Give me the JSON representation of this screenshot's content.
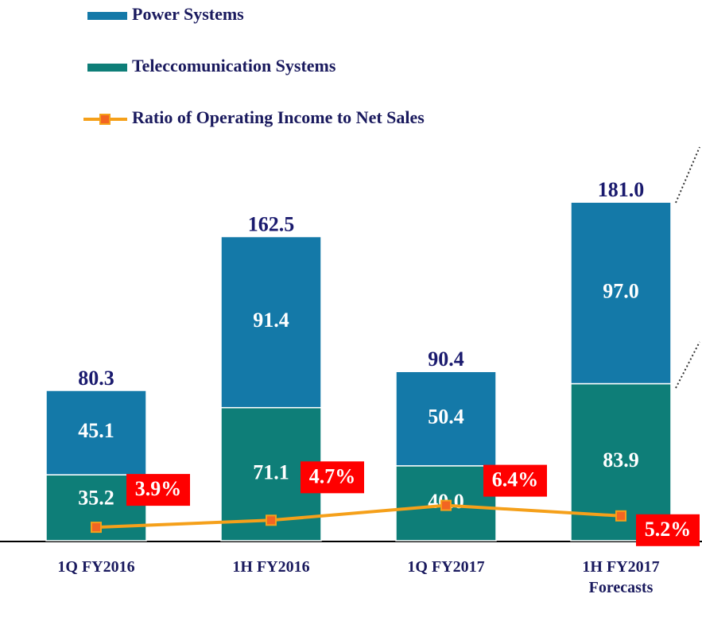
{
  "chart_data": {
    "type": "bar",
    "stacked": true,
    "categories": [
      "1Q FY2016",
      "1H FY2016",
      "1Q FY2017",
      "1H FY2017 Forecasts"
    ],
    "series": [
      {
        "name": "Teleccomunication Systems",
        "color": "#0e7e78",
        "values": [
          35.2,
          71.1,
          40.0,
          83.9
        ],
        "value_labels": [
          "35.2",
          "71.1",
          "40.0",
          "83.9"
        ]
      },
      {
        "name": "Power Systems",
        "color": "#1479a8",
        "values": [
          45.1,
          91.4,
          50.4,
          97.0
        ],
        "value_labels": [
          "45.1",
          "91.4",
          "50.4",
          "97.0"
        ]
      },
      {
        "name": "Ratio of Operating Income to Net Sales",
        "type": "line",
        "axis": "y2",
        "color": "#f5a01a",
        "marker_color": "#f26522",
        "values": [
          3.9,
          4.7,
          6.4,
          5.2
        ],
        "value_labels": [
          "3.9%",
          "4.7%",
          "6.4%",
          "5.2%"
        ]
      }
    ],
    "totals": [
      80.3,
      162.5,
      90.4,
      181.0
    ],
    "total_labels": [
      "80.3",
      "162.5",
      "90.4",
      "181.0"
    ]
  }
}
